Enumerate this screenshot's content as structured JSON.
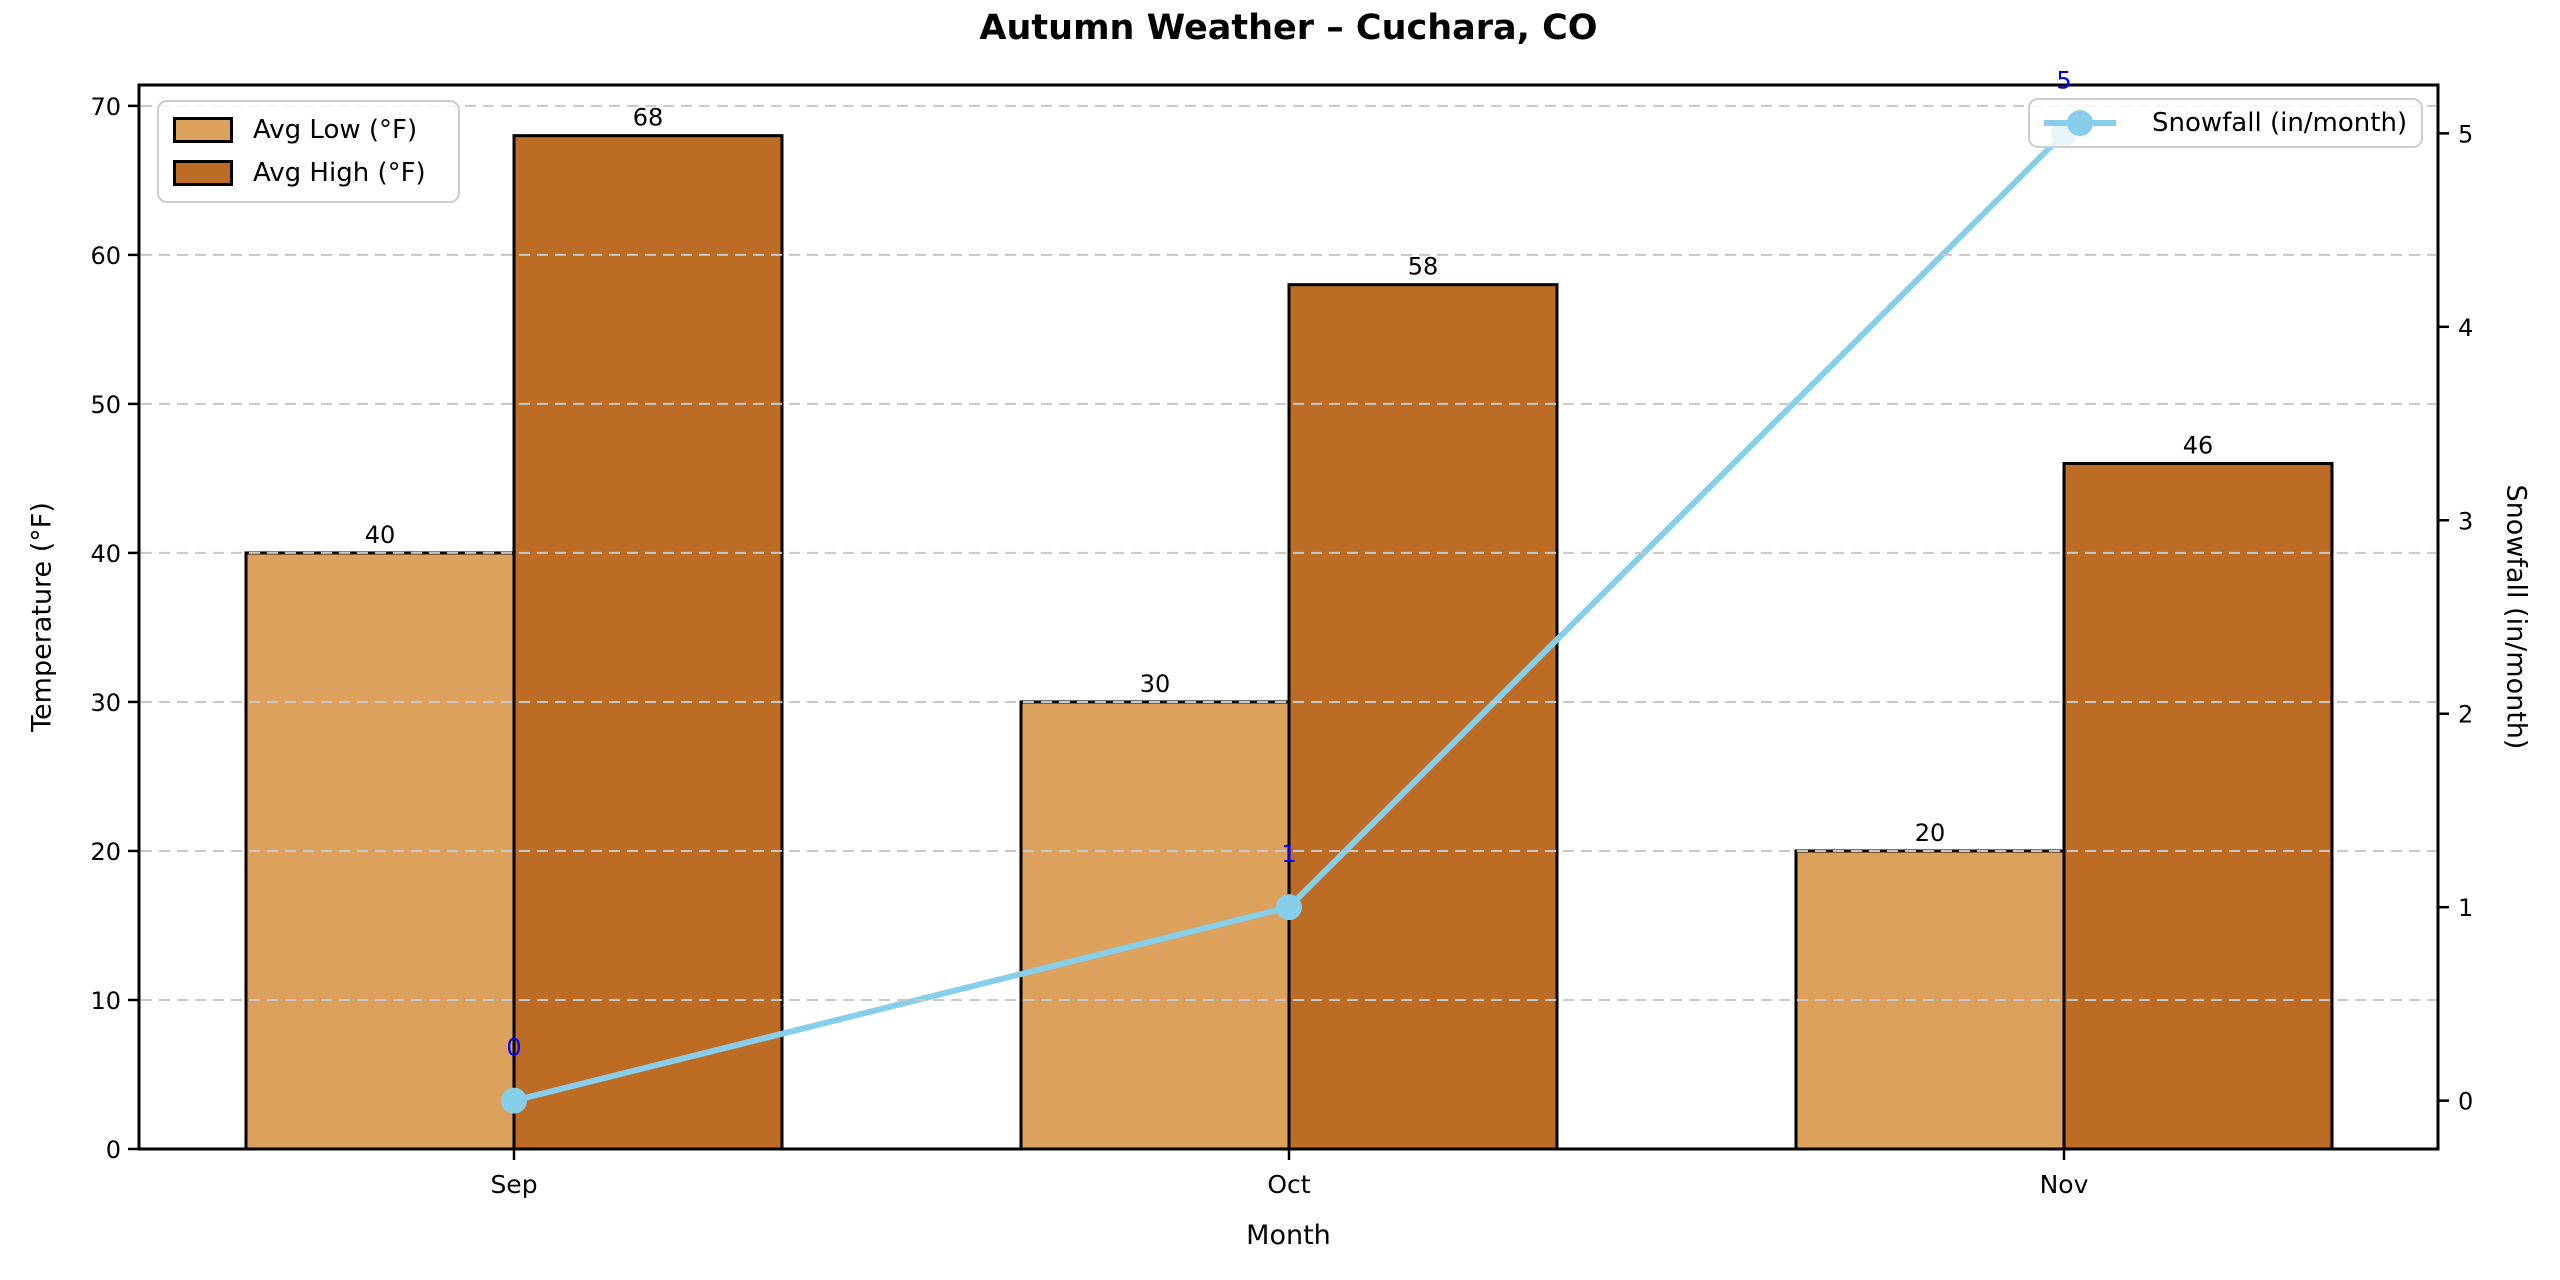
{
  "chart_data": {
    "type": "combo-bar-line",
    "title": "Autumn Weather – Cuchara, CO",
    "xlabel": "Month",
    "ylabel_left": "Temperature (°F)",
    "ylabel_right": "Snowfall (in/month)",
    "categories": [
      "Sep",
      "Oct",
      "Nov"
    ],
    "series": [
      {
        "name": "Avg Low (°F)",
        "type": "bar",
        "axis": "left",
        "color": "#DDA15E",
        "edge_color": "#000000",
        "values": [
          40,
          30,
          20
        ]
      },
      {
        "name": "Avg High (°F)",
        "type": "bar",
        "axis": "left",
        "color": "#BC6C25",
        "edge_color": "#000000",
        "values": [
          68,
          58,
          46
        ]
      },
      {
        "name": "Snowfall (in/month)",
        "type": "line",
        "axis": "right",
        "color": "#87CEEB",
        "marker": "circle",
        "label_color": "#0000FF",
        "values": [
          0,
          1,
          5
        ]
      }
    ],
    "bar_value_labels": [
      [
        40,
        30,
        20
      ],
      [
        68,
        58,
        46
      ]
    ],
    "line_value_labels": [
      "0",
      "1",
      "5"
    ],
    "y_left": {
      "ticks": [
        0,
        10,
        20,
        30,
        40,
        50,
        60,
        70
      ],
      "lim": [
        0,
        71.4
      ]
    },
    "y_right": {
      "ticks": [
        0,
        1,
        2,
        3,
        4,
        5
      ],
      "lim": [
        -0.25,
        5.25
      ]
    },
    "grid": {
      "on": true,
      "axis": "y",
      "style": "dashed",
      "color": "#C8C8C8"
    },
    "legends": [
      {
        "position": "upper-left",
        "entries": [
          "Avg Low (°F)",
          "Avg High (°F)"
        ]
      },
      {
        "position": "upper-right",
        "entries": [
          "Snowfall (in/month)"
        ]
      }
    ],
    "colors": {
      "spine": "#000000",
      "tick_text": "#000000",
      "bar_label_text": "#000000"
    }
  }
}
